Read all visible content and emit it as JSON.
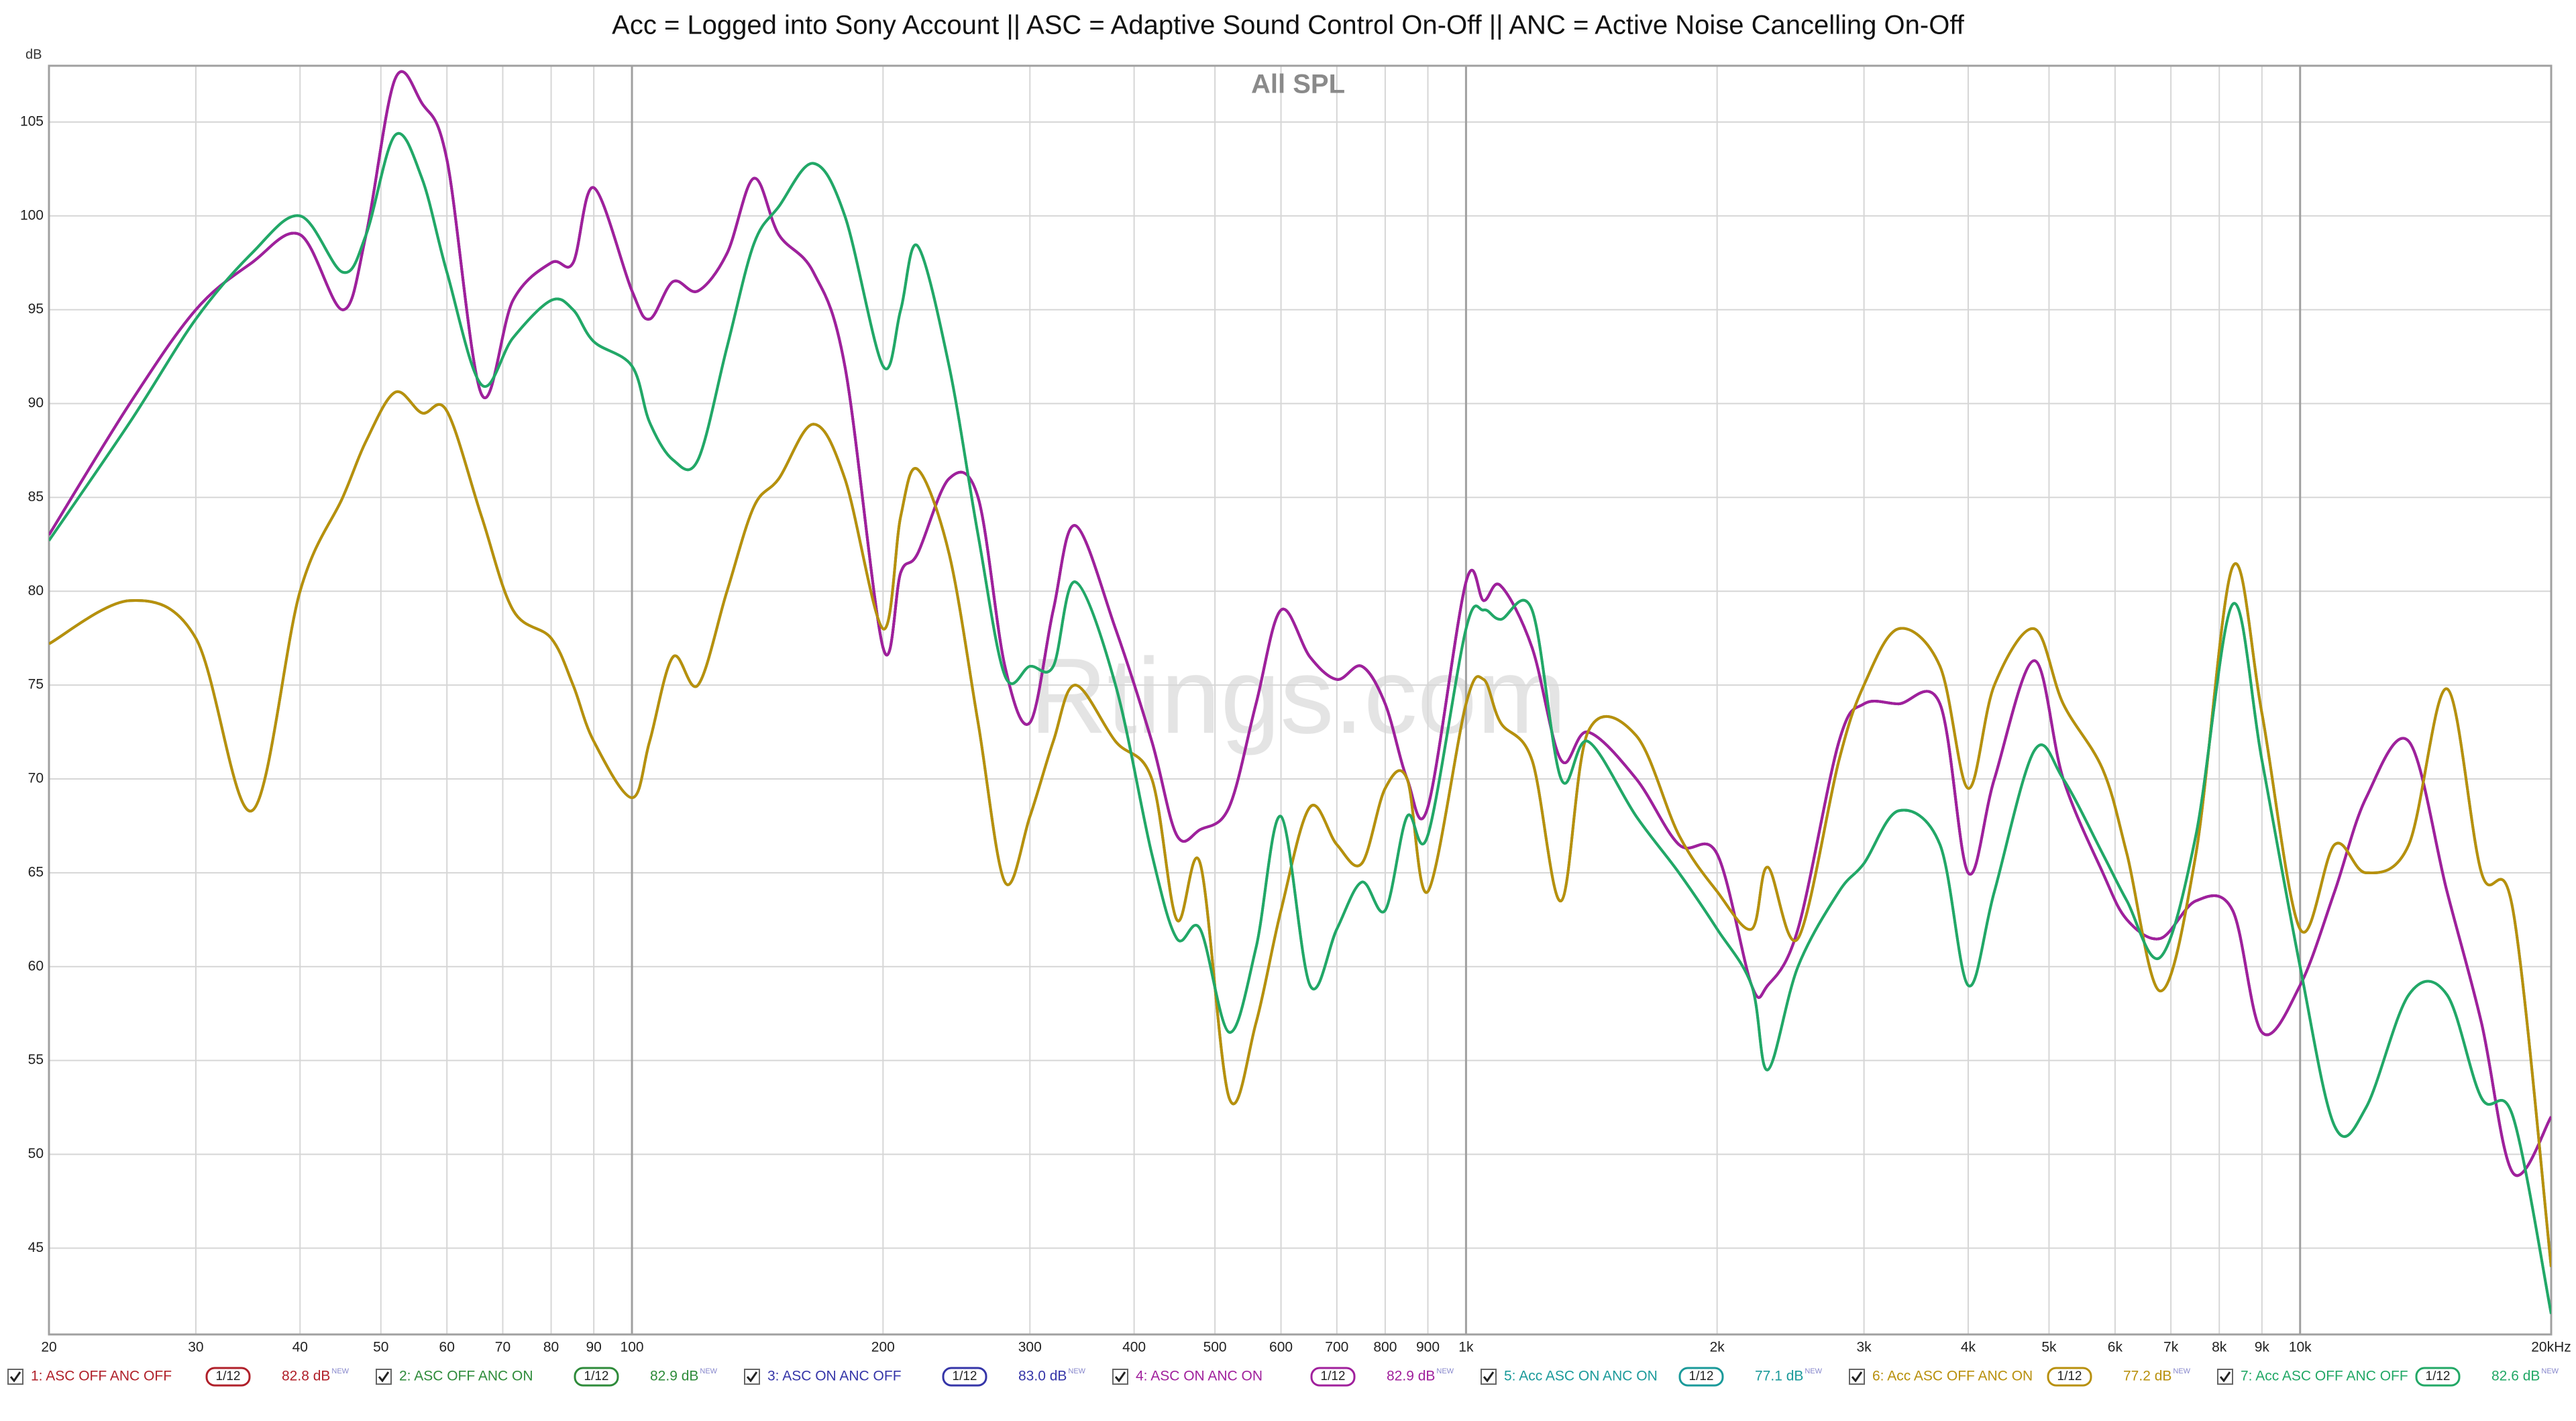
{
  "chart_data": {
    "type": "line",
    "title": "Acc = Logged into Sony Account || ASC = Adaptive Sound Control On-Off || ANC = Active Noise Cancelling On-Off",
    "annotation": "All SPL",
    "watermark": "Rtings.com",
    "y_label": "dB",
    "xscale": "log",
    "grid": true,
    "xlim": [
      20,
      20000
    ],
    "ylim": [
      40.4,
      108
    ],
    "yticks": [
      45,
      50,
      55,
      60,
      65,
      70,
      75,
      80,
      85,
      90,
      95,
      100,
      105
    ],
    "xticks": [
      20,
      30,
      40,
      50,
      60,
      70,
      80,
      90,
      100,
      200,
      300,
      400,
      500,
      600,
      700,
      800,
      900,
      {
        "value": 1000,
        "label": "1k"
      },
      {
        "value": 2000,
        "label": "2k"
      },
      {
        "value": 3000,
        "label": "3k"
      },
      {
        "value": 4000,
        "label": "4k"
      },
      {
        "value": 5000,
        "label": "5k"
      },
      {
        "value": 6000,
        "label": "6k"
      },
      {
        "value": 7000,
        "label": "7k"
      },
      {
        "value": 8000,
        "label": "8k"
      },
      {
        "value": 9000,
        "label": "9k"
      },
      {
        "value": 10000,
        "label": "10k"
      },
      {
        "value": 20000,
        "label": "20kHz"
      }
    ],
    "x": [
      20,
      25,
      30,
      35,
      40,
      45,
      48,
      52,
      56,
      60,
      66,
      72,
      80,
      85,
      90,
      100,
      105,
      112,
      120,
      130,
      140,
      150,
      165,
      180,
      200,
      210,
      220,
      240,
      260,
      280,
      300,
      320,
      340,
      380,
      420,
      450,
      480,
      520,
      560,
      600,
      650,
      700,
      750,
      800,
      850,
      900,
      1000,
      1050,
      1100,
      1200,
      1300,
      1400,
      1600,
      1800,
      2000,
      2200,
      2300,
      2500,
      2800,
      3000,
      3300,
      3700,
      4000,
      4300,
      4800,
      5200,
      5800,
      6200,
      6800,
      7500,
      8300,
      9000,
      10000,
      11000,
      12000,
      13500,
      15000,
      16500,
      18000,
      20000
    ],
    "series": [
      {
        "name": "1: ASC OFF ANC OFF",
        "color": "#b0202a",
        "smoothing": "1/12",
        "level": "82.8 dB",
        "tag": "NEW",
        "values": [
          83,
          90,
          95,
          97.5,
          99,
          95,
          99,
          107.3,
          106,
          103,
          90.5,
          95.5,
          97.5,
          97.5,
          101.5,
          96,
          94.5,
          96.5,
          96,
          98,
          102,
          99,
          97,
          92,
          77,
          81,
          82,
          86,
          85,
          76,
          73,
          79,
          83.5,
          78,
          72,
          67,
          67.3,
          68.5,
          74,
          79,
          76.5,
          75.3,
          76,
          74,
          70,
          68.5,
          80.5,
          79.5,
          80.3,
          77,
          71,
          72.5,
          70,
          66.5,
          66,
          59,
          59,
          62,
          72,
          74,
          74,
          74,
          65,
          70,
          76.3,
          70,
          65,
          62.5,
          61.5,
          63.5,
          63,
          56.5,
          59,
          64,
          69,
          72,
          64,
          57,
          49,
          52
        ]
      },
      {
        "name": "2: ASC OFF ANC ON",
        "color": "#2e8b3a",
        "smoothing": "1/12",
        "level": "82.9 dB",
        "tag": "NEW",
        "values": [
          77.2,
          79.5,
          77.5,
          68.3,
          80,
          85,
          88,
          90.6,
          89.5,
          89.6,
          84,
          79,
          77.5,
          75,
          72,
          69,
          72,
          76.5,
          75,
          80,
          84.5,
          86,
          88.9,
          86,
          78,
          84,
          86.5,
          82,
          73,
          64.5,
          68,
          72,
          75,
          72,
          70,
          62.5,
          65.5,
          53,
          57,
          63,
          68.5,
          66.5,
          65.5,
          69.5,
          70,
          64,
          74,
          75.3,
          73,
          71,
          63.5,
          72.5,
          72.3,
          67,
          64,
          62,
          65.3,
          61.5,
          71,
          75,
          78,
          76,
          69.5,
          75,
          78,
          74,
          70.5,
          66,
          58.7,
          66,
          81.3,
          73.5,
          62,
          66.5,
          65,
          66.5,
          74.8,
          65,
          63,
          44
        ]
      },
      {
        "name": "3: ASC ON ANC OFF",
        "color": "#3535a8",
        "smoothing": "1/12",
        "level": "83.0 dB",
        "tag": "NEW",
        "values": [
          83,
          90,
          95,
          97.5,
          99,
          95,
          99,
          107.3,
          106,
          103,
          90.5,
          95.5,
          97.5,
          97.5,
          101.5,
          96,
          94.5,
          96.5,
          96,
          98,
          102,
          99,
          97,
          92,
          77,
          81,
          82,
          86,
          85,
          76,
          73,
          79,
          83.5,
          78,
          72,
          67,
          67.3,
          68.5,
          74,
          79,
          76.5,
          75.3,
          76,
          74,
          70,
          68.5,
          80.5,
          79.5,
          80.3,
          77,
          71,
          72.5,
          70,
          66.5,
          66,
          59,
          59,
          62,
          72,
          74,
          74,
          74,
          65,
          70,
          76.3,
          70,
          65,
          62.5,
          61.5,
          63.5,
          63,
          56.5,
          59,
          64,
          69,
          72,
          64,
          57,
          49,
          52
        ]
      },
      {
        "name": "4: ASC ON ANC ON",
        "color": "#a0209c",
        "smoothing": "1/12",
        "level": "82.9 dB",
        "tag": "NEW",
        "values": [
          83,
          90,
          95,
          97.5,
          99,
          95,
          99,
          107.3,
          106,
          103,
          90.5,
          95.5,
          97.5,
          97.5,
          101.5,
          96,
          94.5,
          96.5,
          96,
          98,
          102,
          99,
          97,
          92,
          77,
          81,
          82,
          86,
          85,
          76,
          73,
          79,
          83.5,
          78,
          72,
          67,
          67.3,
          68.5,
          74,
          79,
          76.5,
          75.3,
          76,
          74,
          70,
          68.5,
          80.5,
          79.5,
          80.3,
          77,
          71,
          72.5,
          70,
          66.5,
          66,
          59,
          59,
          62,
          72,
          74,
          74,
          74,
          65,
          70,
          76.3,
          70,
          65,
          62.5,
          61.5,
          63.5,
          63,
          56.5,
          59,
          64,
          69,
          72,
          64,
          57,
          49,
          52
        ]
      },
      {
        "name": "5: Acc ASC ON ANC ON",
        "color": "#1a9a9a",
        "smoothing": "1/12",
        "level": "77.1 dB",
        "tag": "NEW",
        "values": [
          82.7,
          89,
          94.5,
          98,
          100,
          97,
          99,
          104.3,
          102,
          97,
          91,
          93.5,
          95.5,
          95,
          93.3,
          92,
          89,
          87,
          87,
          93,
          98.5,
          100.5,
          102.8,
          100,
          92,
          95,
          98.4,
          92,
          83,
          75.5,
          76,
          76,
          80.5,
          75,
          66,
          61.5,
          62,
          56.5,
          61,
          68,
          59,
          62,
          64.5,
          63,
          68,
          67,
          78,
          79,
          78.5,
          79,
          70,
          72,
          68,
          65,
          62,
          59,
          54.5,
          60,
          64,
          65.5,
          68.3,
          66.5,
          59,
          64,
          71.5,
          70,
          66,
          63.5,
          60.5,
          67,
          79.3,
          71,
          60,
          51.5,
          52.5,
          58.5,
          58.5,
          53,
          52,
          41.5
        ]
      },
      {
        "name": "6: Acc ASC OFF ANC ON",
        "color": "#b8900c",
        "smoothing": "1/12",
        "level": "77.2 dB",
        "tag": "NEW",
        "values": [
          77.2,
          79.5,
          77.5,
          68.3,
          80,
          85,
          88,
          90.6,
          89.5,
          89.6,
          84,
          79,
          77.5,
          75,
          72,
          69,
          72,
          76.5,
          75,
          80,
          84.5,
          86,
          88.9,
          86,
          78,
          84,
          86.5,
          82,
          73,
          64.5,
          68,
          72,
          75,
          72,
          70,
          62.5,
          65.5,
          53,
          57,
          63,
          68.5,
          66.5,
          65.5,
          69.5,
          70,
          64,
          74,
          75.3,
          73,
          71,
          63.5,
          72.5,
          72.3,
          67,
          64,
          62,
          65.3,
          61.5,
          71,
          75,
          78,
          76,
          69.5,
          75,
          78,
          74,
          70.5,
          66,
          58.7,
          66,
          81.3,
          73.5,
          62,
          66.5,
          65,
          66.5,
          74.8,
          65,
          63,
          44
        ]
      },
      {
        "name": "7: Acc ASC OFF ANC OFF",
        "color": "#22a866",
        "smoothing": "1/12",
        "level": "82.6 dB",
        "tag": "NEW",
        "values": [
          82.7,
          89,
          94.5,
          98,
          100,
          97,
          99,
          104.3,
          102,
          97,
          91,
          93.5,
          95.5,
          95,
          93.3,
          92,
          89,
          87,
          87,
          93,
          98.5,
          100.5,
          102.8,
          100,
          92,
          95,
          98.4,
          92,
          83,
          75.5,
          76,
          76,
          80.5,
          75,
          66,
          61.5,
          62,
          56.5,
          61,
          68,
          59,
          62,
          64.5,
          63,
          68,
          67,
          78,
          79,
          78.5,
          79,
          70,
          72,
          68,
          65,
          62,
          59,
          54.5,
          60,
          64,
          65.5,
          68.3,
          66.5,
          59,
          64,
          71.5,
          70,
          66,
          63.5,
          60.5,
          67,
          79.3,
          71,
          60,
          51.5,
          52.5,
          58.5,
          58.5,
          53,
          52,
          41.5
        ]
      }
    ]
  }
}
